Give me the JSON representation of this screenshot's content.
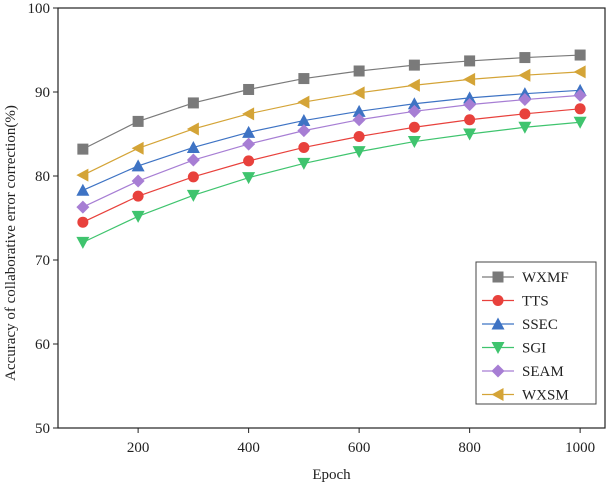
{
  "chart_data": {
    "type": "line",
    "title": "",
    "xlabel": "Epoch",
    "ylabel": "Accuracy of collaborative error correction(%)",
    "xlim": [
      55,
      1045
    ],
    "ylim": [
      50,
      100
    ],
    "x_ticks": [
      200,
      400,
      600,
      800,
      1000
    ],
    "y_ticks": [
      50,
      60,
      70,
      80,
      90,
      100
    ],
    "x_tick_labels": [
      "200",
      "400",
      "600",
      "800",
      "1000"
    ],
    "y_tick_labels": [
      "50",
      "60",
      "70",
      "80",
      "90",
      "100"
    ],
    "grid": false,
    "legend_position": "bottom-right",
    "x": [
      100,
      200,
      300,
      400,
      500,
      600,
      700,
      800,
      900,
      1000
    ],
    "series": [
      {
        "name": "WXMF",
        "marker": "square",
        "color": "#7a7a7a",
        "values": [
          83.2,
          86.5,
          88.7,
          90.3,
          91.6,
          92.5,
          93.2,
          93.7,
          94.1,
          94.4
        ]
      },
      {
        "name": "TTS",
        "marker": "circle",
        "color": "#e8413c",
        "values": [
          74.5,
          77.6,
          79.9,
          81.8,
          83.4,
          84.7,
          85.8,
          86.7,
          87.4,
          88.0
        ]
      },
      {
        "name": "SSEC",
        "marker": "triangle-up",
        "color": "#3e73c4",
        "values": [
          78.3,
          81.2,
          83.4,
          85.2,
          86.6,
          87.7,
          88.6,
          89.3,
          89.8,
          90.2
        ]
      },
      {
        "name": "SGI",
        "marker": "triangle-down",
        "color": "#3fc46e",
        "values": [
          72.1,
          75.2,
          77.7,
          79.8,
          81.5,
          82.9,
          84.1,
          85.0,
          85.8,
          86.4
        ]
      },
      {
        "name": "SEAM",
        "marker": "diamond",
        "color": "#a77ed4",
        "values": [
          76.3,
          79.4,
          81.9,
          83.8,
          85.4,
          86.7,
          87.7,
          88.5,
          89.1,
          89.6
        ]
      },
      {
        "name": "WXSM",
        "marker": "triangle-left",
        "color": "#d4a437",
        "values": [
          80.1,
          83.3,
          85.6,
          87.4,
          88.8,
          89.9,
          90.8,
          91.5,
          92.0,
          92.4
        ]
      }
    ]
  }
}
